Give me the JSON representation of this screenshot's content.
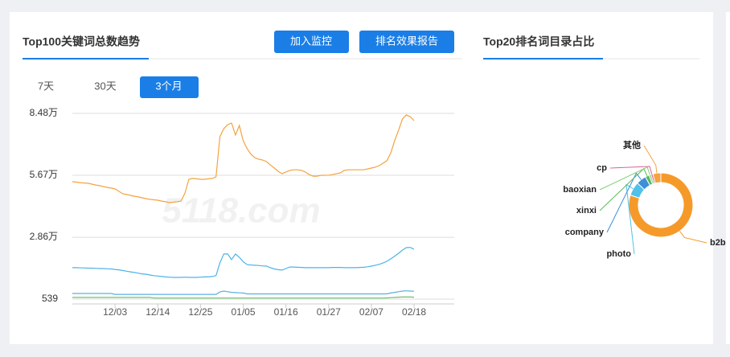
{
  "header": {
    "trend_title": "Top100关键词总数趋势",
    "btn_monitor": "加入监控",
    "btn_report": "排名效果报告",
    "share_title": "Top20排名词目录占比",
    "tabs": [
      "7天",
      "30天",
      "3个月"
    ],
    "active_tab": 2,
    "watermark": "5118.com"
  },
  "chart_data": [
    {
      "type": "line",
      "ylim": [
        539,
        84800
      ],
      "yticks": [
        539,
        {
          "value": 28600,
          "label": "2.86万"
        },
        {
          "value": 56700,
          "label": "5.67万"
        },
        {
          "value": 84800,
          "label": "8.48万"
        }
      ],
      "grid": true,
      "categories": [
        null,
        null,
        null,
        null,
        null,
        null,
        null,
        null,
        null,
        null,
        null,
        "12/03",
        null,
        null,
        null,
        null,
        null,
        null,
        null,
        null,
        null,
        null,
        "12/14",
        null,
        null,
        null,
        null,
        null,
        null,
        null,
        null,
        null,
        null,
        "12/25",
        null,
        null,
        null,
        null,
        null,
        null,
        null,
        null,
        null,
        null,
        "01/05",
        null,
        null,
        null,
        null,
        null,
        null,
        null,
        null,
        null,
        null,
        "01/16",
        null,
        null,
        null,
        null,
        null,
        null,
        null,
        null,
        null,
        null,
        "01/27",
        null,
        null,
        null,
        null,
        null,
        null,
        null,
        null,
        null,
        null,
        "02/07",
        null,
        null,
        null,
        null,
        null,
        null,
        null,
        null,
        null,
        null,
        "02/18"
      ],
      "series": [
        {
          "color": "#f4a340",
          "values": [
            53800,
            53600,
            53400,
            53200,
            53100,
            52700,
            52300,
            52000,
            51600,
            51200,
            50900,
            50500,
            49400,
            48300,
            48000,
            47600,
            47200,
            46900,
            46500,
            46100,
            45800,
            45600,
            45400,
            45000,
            44700,
            44300,
            44500,
            44700,
            45000,
            48700,
            54900,
            55300,
            55100,
            54900,
            54900,
            55100,
            55300,
            56000,
            74200,
            77900,
            79700,
            80400,
            75000,
            79300,
            72400,
            68800,
            66200,
            64700,
            64000,
            63600,
            62900,
            61400,
            60000,
            58500,
            57400,
            58200,
            58900,
            59200,
            59200,
            58900,
            58200,
            57000,
            56300,
            56300,
            56700,
            56700,
            56800,
            57000,
            57400,
            57800,
            58900,
            59200,
            59200,
            59200,
            59200,
            59200,
            59600,
            60000,
            60400,
            61100,
            62200,
            63300,
            66900,
            72400,
            77100,
            82300,
            84100,
            83300,
            81500
          ]
        },
        {
          "color": "#4db3e6",
          "values": [
            14800,
            14800,
            14700,
            14700,
            14600,
            14600,
            14500,
            14400,
            14400,
            14300,
            14200,
            14000,
            13800,
            13500,
            13200,
            12900,
            12600,
            12300,
            12000,
            11800,
            11500,
            11200,
            11000,
            10800,
            10600,
            10500,
            10400,
            10400,
            10400,
            10500,
            10400,
            10400,
            10400,
            10500,
            10600,
            10600,
            10800,
            11200,
            17000,
            21000,
            21000,
            18500,
            21000,
            19500,
            17500,
            16200,
            16000,
            15900,
            15800,
            15600,
            15500,
            14800,
            14200,
            13900,
            13700,
            14400,
            15100,
            15100,
            15000,
            14900,
            14800,
            14800,
            14800,
            14800,
            14800,
            14800,
            14800,
            14900,
            14900,
            14900,
            14800,
            14800,
            14800,
            14800,
            14900,
            15000,
            15200,
            15500,
            15900,
            16300,
            16900,
            17700,
            18800,
            20000,
            21300,
            22800,
            23900,
            24000,
            23200
          ]
        },
        {
          "color": "#5ab0e0",
          "values": [
            3100,
            3100,
            3100,
            3100,
            3100,
            3100,
            3100,
            3100,
            3100,
            3100,
            3100,
            2700,
            2700,
            2700,
            2700,
            2700,
            2700,
            2700,
            2700,
            2700,
            2700,
            2700,
            2700,
            2700,
            2700,
            2700,
            2700,
            2700,
            2700,
            2700,
            2700,
            2700,
            2700,
            2700,
            2700,
            2700,
            2700,
            2700,
            3800,
            4200,
            3900,
            3600,
            3500,
            3400,
            3300,
            2900,
            2900,
            2900,
            2900,
            2900,
            2900,
            2900,
            2900,
            2900,
            2900,
            2900,
            2900,
            2900,
            2900,
            2900,
            2900,
            2900,
            2900,
            2900,
            2900,
            2900,
            2900,
            2900,
            2900,
            2900,
            2900,
            2900,
            2900,
            2900,
            2900,
            2900,
            2900,
            2900,
            2900,
            2900,
            2900,
            2900,
            3300,
            3600,
            3900,
            4200,
            4300,
            4200,
            4100
          ]
        },
        {
          "color": "#6cc06c",
          "values": [
            1300,
            1300,
            1300,
            1300,
            1300,
            1300,
            1300,
            1300,
            1300,
            1300,
            1300,
            1300,
            1300,
            1300,
            1300,
            1300,
            1300,
            1300,
            1300,
            1300,
            1300,
            1000,
            1000,
            1000,
            1000,
            1000,
            1000,
            1000,
            1000,
            1000,
            1000,
            1000,
            1000,
            1000,
            1000,
            1000,
            1000,
            1000,
            1000,
            1000,
            1000,
            1000,
            1000,
            1000,
            1000,
            1000,
            1000,
            1000,
            1000,
            1000,
            1000,
            1000,
            1000,
            1000,
            1000,
            1000,
            1000,
            1000,
            1000,
            1000,
            1000,
            1000,
            1000,
            1000,
            1000,
            1000,
            1000,
            1000,
            1000,
            1000,
            1000,
            1000,
            1000,
            1000,
            1000,
            1000,
            1000,
            1000,
            1000,
            1000,
            1000,
            1100,
            1200,
            1300,
            1400,
            1500,
            1500,
            1500,
            1400
          ]
        }
      ]
    },
    {
      "type": "pie",
      "donut": true,
      "categories": [
        "b2b",
        "photo",
        "company",
        "xinxi",
        "baoxian",
        "cp",
        "其他"
      ],
      "values": [
        80,
        7,
        5,
        2,
        1,
        1,
        4
      ],
      "colors": [
        "#f59a2a",
        "#4fc1ea",
        "#3d8fd8",
        "#58b85c",
        "#7fd36e",
        "#d9629a",
        "#f4a340"
      ]
    }
  ]
}
